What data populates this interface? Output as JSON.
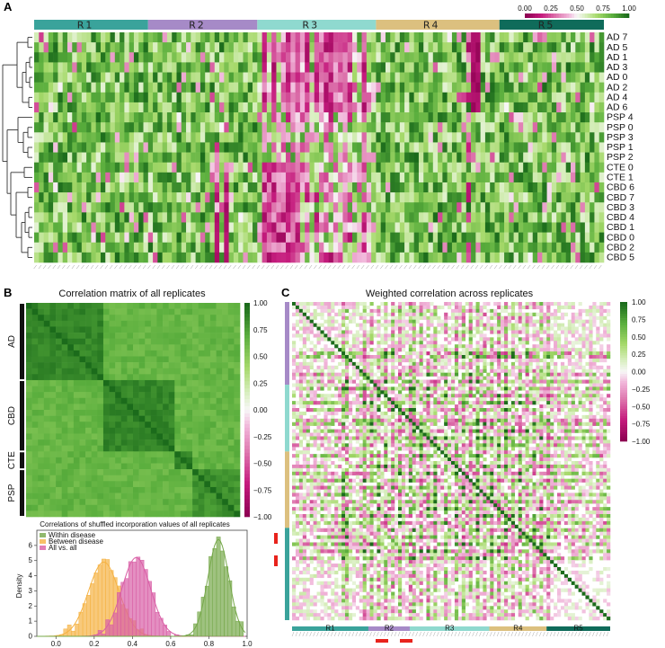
{
  "panel_labels": {
    "A": "A",
    "B": "B",
    "C": "C"
  },
  "colors": {
    "R1": "#3aa39b",
    "R2": "#a68ac7",
    "R3": "#8fd9cf",
    "R4": "#dcc07f",
    "R5": "#0f6b5a",
    "green_dark": "#1b6b1b",
    "pink_dark": "#8e0152",
    "hist_within": "#76a84a",
    "hist_between": "#f5b243",
    "hist_all": "#d95fa6"
  },
  "chart_data": [
    {
      "id": "A",
      "type": "heatmap",
      "title": "",
      "regions": [
        "R1",
        "R2",
        "R3",
        "R4",
        "R5"
      ],
      "region_label_5": "R5",
      "rows": [
        "AD 7",
        "AD 5",
        "AD 1",
        "AD 3",
        "AD 0",
        "AD 2",
        "AD 4",
        "AD 6",
        "PSP 4",
        "PSP 0",
        "PSP 3",
        "PSP 1",
        "PSP 2",
        "CTE 0",
        "CTE 1",
        "CBD 6",
        "CBD 7",
        "CBD 3",
        "CBD 4",
        "CBD 1",
        "CBD 0",
        "CBD 2",
        "CBD 5"
      ],
      "colorbar": {
        "ticks": [
          "0.00",
          "0.25",
          "0.50",
          "0.75",
          "1.00"
        ],
        "range": [
          0,
          1
        ]
      },
      "dendrogram": true
    },
    {
      "id": "B-matrix",
      "type": "heatmap",
      "title": "Correlation matrix of all replicates",
      "groups": [
        "AD",
        "CBD",
        "CTE",
        "PSP"
      ],
      "colorbar": {
        "ticks": [
          "1.00",
          "0.75",
          "0.50",
          "0.25",
          "0.00",
          "−0.25",
          "−0.50",
          "−0.75",
          "−1.00"
        ],
        "range": [
          -1,
          1
        ]
      }
    },
    {
      "id": "B-hist",
      "type": "bar",
      "title": "Correlations of shuffled incorporation values of all replicates",
      "ylabel": "Density",
      "xlabel": "",
      "xlim": [
        -0.1,
        1.0
      ],
      "xticks": [
        "0.0",
        "0.2",
        "0.4",
        "0.6",
        "0.8",
        "1.0"
      ],
      "yticks": [
        "0",
        "1",
        "2",
        "3",
        "4",
        "5",
        "6"
      ],
      "ylim": [
        0,
        7
      ],
      "legend": {
        "placement": "top-left",
        "entries": [
          "Within disease",
          "Between disease",
          "All vs. all"
        ]
      },
      "series": [
        {
          "name": "Within disease",
          "mean": 0.85,
          "sd": 0.055,
          "peak": 6.4
        },
        {
          "name": "Between disease",
          "mean": 0.25,
          "sd": 0.08,
          "peak": 4.9
        },
        {
          "name": "All vs. all",
          "mean": 0.42,
          "sd": 0.075,
          "peak": 5.2
        }
      ]
    },
    {
      "id": "C",
      "type": "heatmap",
      "title": "Weighted correlation across replicates",
      "regions": [
        "R1",
        "R2",
        "R3",
        "R4",
        "R5"
      ],
      "colorbar": {
        "ticks": [
          "1.00",
          "0.75",
          "0.50",
          "0.25",
          "0.00",
          "−0.25",
          "−0.50",
          "−0.75",
          "−1.00"
        ],
        "range": [
          -1,
          1
        ]
      }
    }
  ]
}
